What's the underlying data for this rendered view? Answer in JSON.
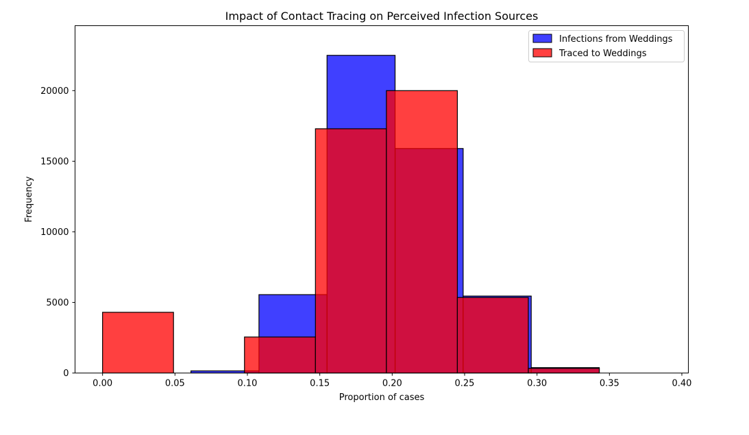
{
  "chart_data": {
    "type": "bar",
    "subtype": "overlaid-histogram",
    "title": "Impact of Contact Tracing on Perceived Infection Sources",
    "xlabel": "Proportion of cases",
    "ylabel": "Frequency",
    "xlim": [
      -0.019,
      0.4045
    ],
    "ylim": [
      0,
      24600
    ],
    "xticks": [
      0.0,
      0.05,
      0.1,
      0.15,
      0.2,
      0.25,
      0.3,
      0.35,
      0.4
    ],
    "xtick_labels": [
      "0.00",
      "0.05",
      "0.10",
      "0.15",
      "0.20",
      "0.25",
      "0.30",
      "0.35",
      "0.40"
    ],
    "yticks": [
      0,
      5000,
      10000,
      15000,
      20000
    ],
    "ytick_labels": [
      "0",
      "5000",
      "10000",
      "15000",
      "20000"
    ],
    "grid": false,
    "legend_position": "top-right",
    "series": [
      {
        "name": "Infections from Weddings",
        "color": "#0000ff",
        "alpha": 0.75,
        "bins": [
          {
            "x0": 0.012,
            "x1": 0.061,
            "value": 0
          },
          {
            "x0": 0.061,
            "x1": 0.108,
            "value": 150
          },
          {
            "x0": 0.108,
            "x1": 0.155,
            "value": 5550
          },
          {
            "x0": 0.155,
            "x1": 0.202,
            "value": 22500
          },
          {
            "x0": 0.202,
            "x1": 0.249,
            "value": 15900
          },
          {
            "x0": 0.249,
            "x1": 0.296,
            "value": 5450
          },
          {
            "x0": 0.296,
            "x1": 0.343,
            "value": 380
          },
          {
            "x0": 0.343,
            "x1": 0.39,
            "value": 0
          }
        ]
      },
      {
        "name": "Traced to Weddings",
        "color": "#ff0000",
        "alpha": 0.75,
        "bins": [
          {
            "x0": 0.0,
            "x1": 0.049,
            "value": 4300
          },
          {
            "x0": 0.049,
            "x1": 0.098,
            "value": 0
          },
          {
            "x0": 0.098,
            "x1": 0.147,
            "value": 2550
          },
          {
            "x0": 0.147,
            "x1": 0.196,
            "value": 17300
          },
          {
            "x0": 0.196,
            "x1": 0.245,
            "value": 20000
          },
          {
            "x0": 0.245,
            "x1": 0.294,
            "value": 5350
          },
          {
            "x0": 0.294,
            "x1": 0.343,
            "value": 330
          }
        ]
      }
    ]
  }
}
